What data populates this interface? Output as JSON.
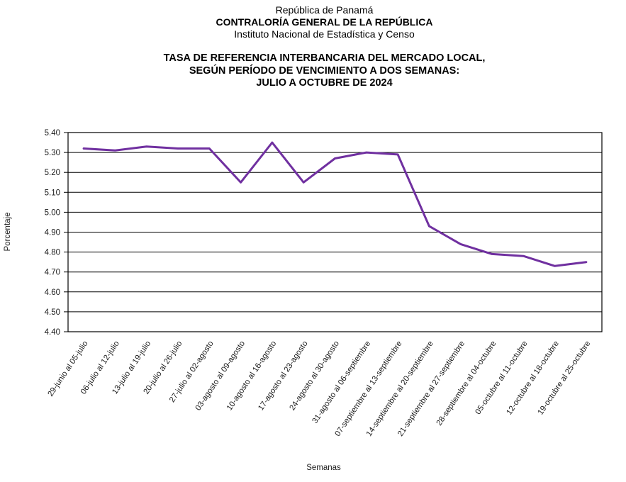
{
  "header": {
    "line1": "República de Panamá",
    "line2": "CONTRALORÍA GENERAL DE LA REPÚBLICA",
    "line3": "Instituto Nacional de Estadística y Censo"
  },
  "title": {
    "line1": "TASA DE REFERENCIA INTERBANCARIA DEL MERCADO LOCAL,",
    "line2": "SEGÚN PERÍODO DE VENCIMIENTO A DOS SEMANAS:",
    "line3": "JULIO A OCTUBRE DE 2024"
  },
  "chart_data": {
    "type": "line",
    "title": "",
    "xlabel": "Semanas",
    "ylabel": "Porcentaje",
    "categories": [
      "29-junio al 05-julio",
      "06-julio al 12-julio",
      "13-julio al 19-julio",
      "20-julio al 26-julio",
      "27-julio al 02-agosto",
      "03-agosto al 09-agosto",
      "10-agosto al 16-agosto",
      "17-agosto al 23-agosto",
      "24-agosto al 30-agosto",
      "31-agosto al 06-septiembre",
      "07-septiembre al 13-septiembre",
      "14-septiembre al 20-septiembre",
      "21-septiembre al 27-septiembre",
      "28-septiembre al 04-octubre",
      "05-octubre al 11-octubre",
      "12-octubre al 18-octubre",
      "19-octubre al 25-octubre"
    ],
    "values": [
      5.32,
      5.31,
      5.33,
      5.32,
      5.32,
      5.15,
      5.35,
      5.15,
      5.27,
      5.3,
      5.29,
      4.93,
      4.84,
      4.79,
      4.78,
      4.73,
      4.75
    ],
    "ylim": [
      4.4,
      5.4
    ],
    "ytick_step": 0.1,
    "ytick_decimals": 2,
    "grid": true,
    "legend": "none",
    "line_color": "#7030A0",
    "axis_color": "#000000",
    "grid_color": "#000000",
    "x_label_angle_deg": -56
  }
}
